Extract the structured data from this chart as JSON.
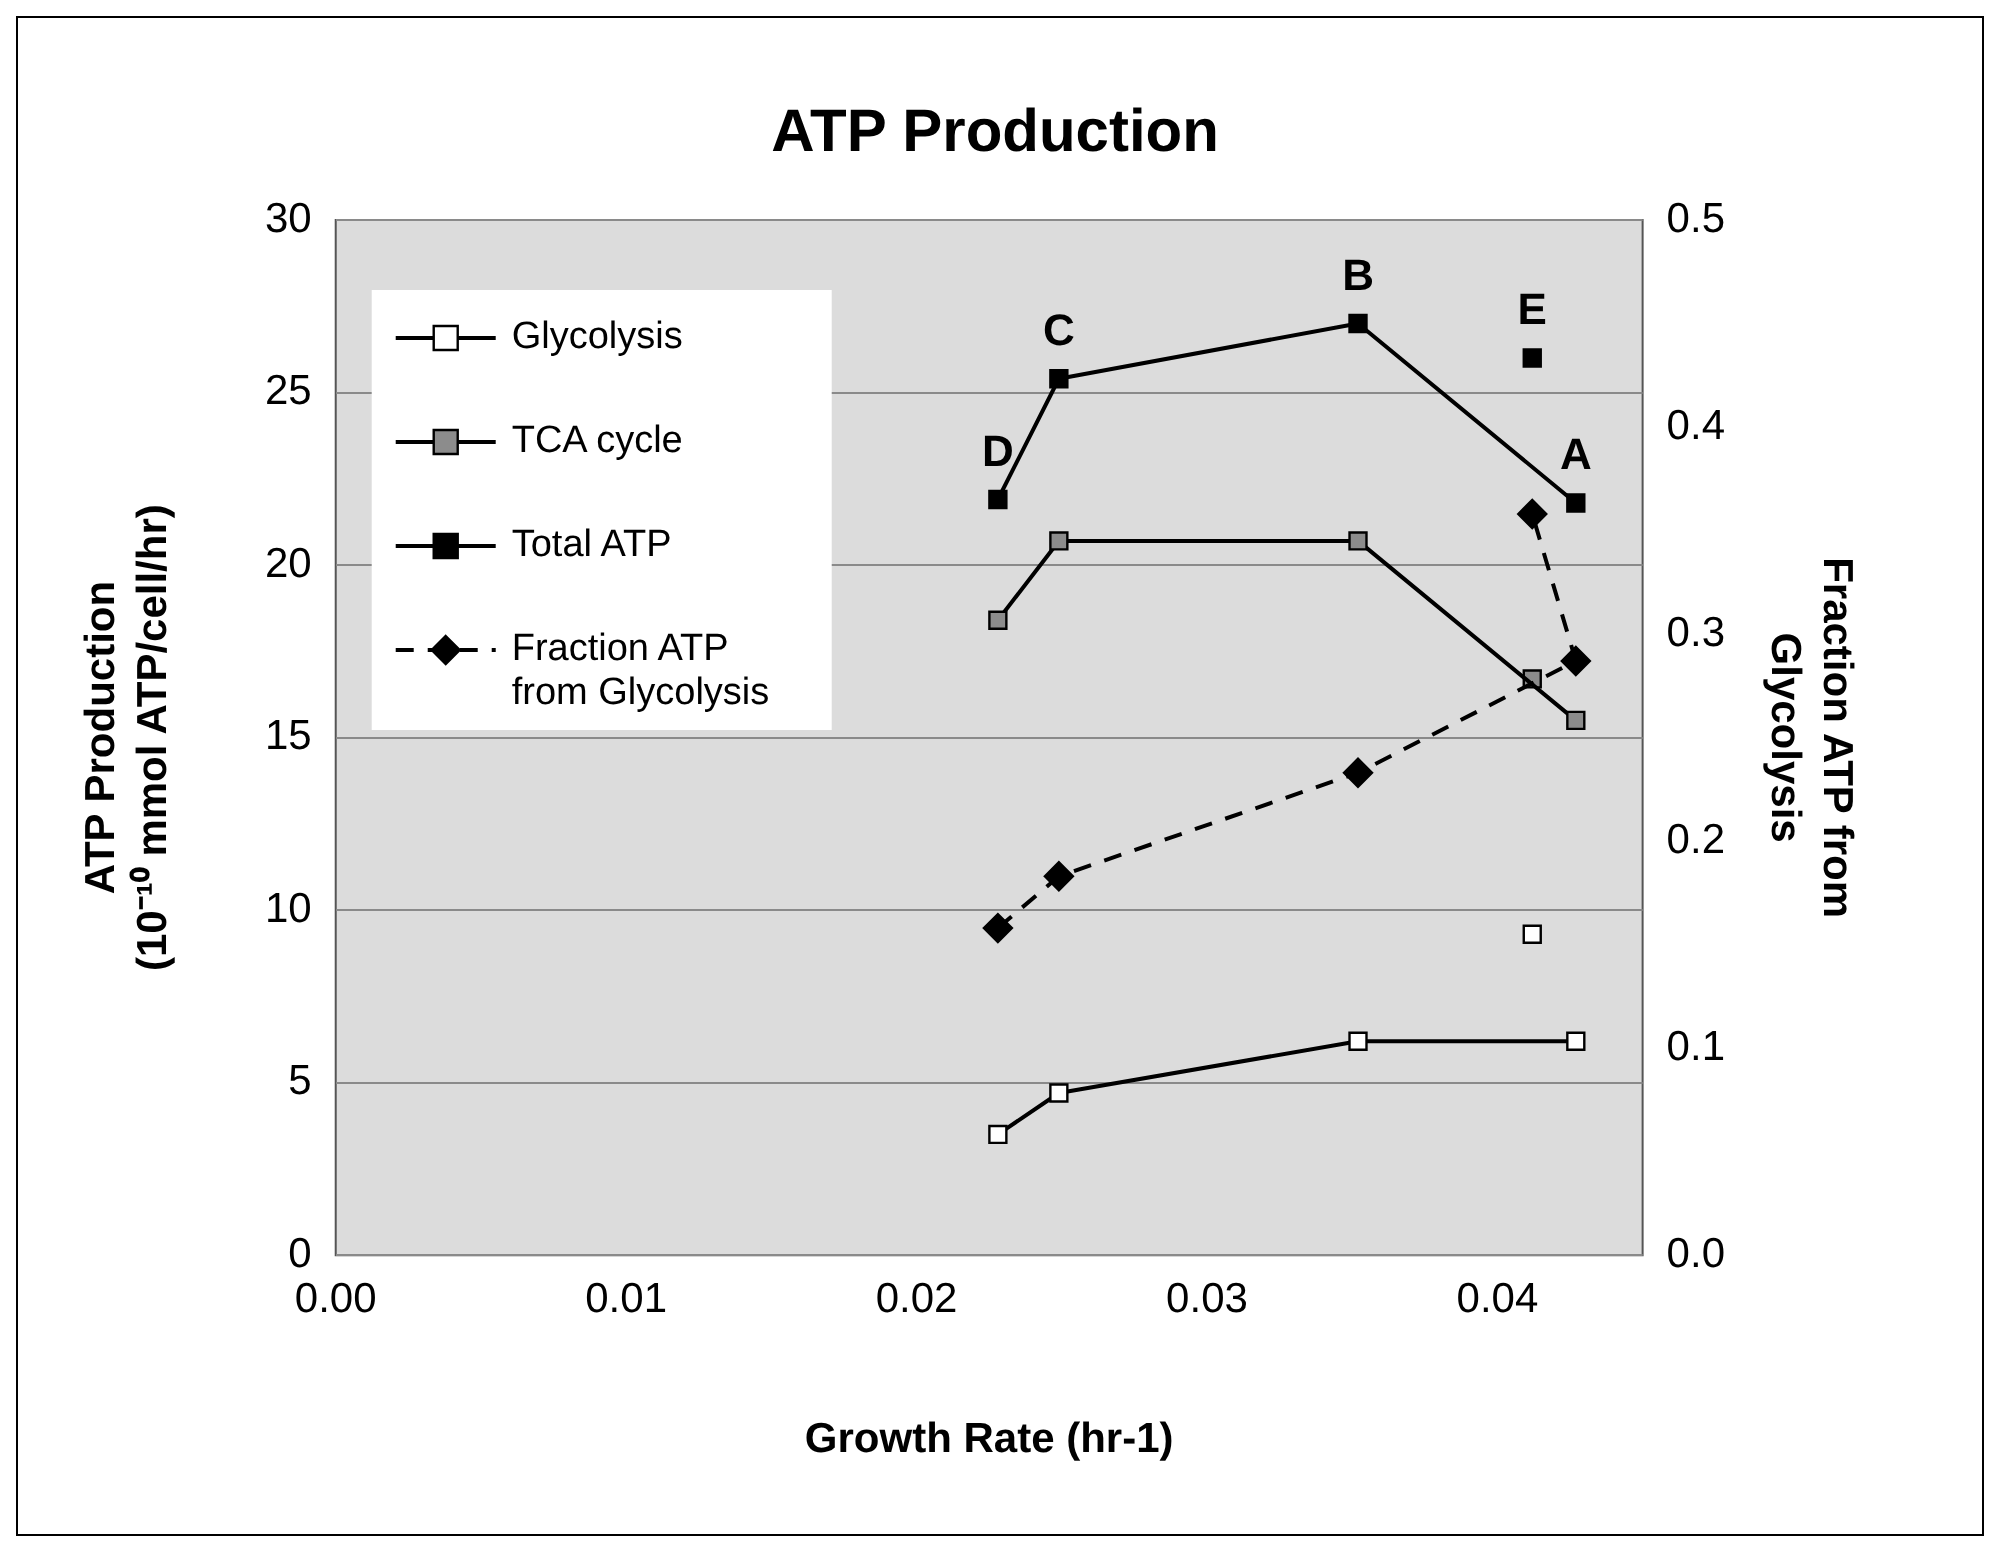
{
  "chart_data": {
    "type": "line",
    "title": "ATP Production",
    "xlabel": "Growth Rate (hr-1)",
    "ylabel": "ATP Production\n(10⁻¹⁰ mmol ATP/cell/hr)",
    "y2label": "Fraction ATP from\nGlycolysis",
    "xlim": [
      0,
      0.045
    ],
    "xticks": [
      {
        "value": 0,
        "label": "0.00"
      },
      {
        "value": 0.01,
        "label": "0.01"
      },
      {
        "value": 0.02,
        "label": "0.02"
      },
      {
        "value": 0.03,
        "label": "0.03"
      },
      {
        "value": 0.04,
        "label": "0.04"
      }
    ],
    "ylim": [
      0,
      30
    ],
    "yticks": [
      0,
      5,
      10,
      15,
      20,
      25,
      30
    ],
    "y2lim": [
      0,
      0.5
    ],
    "y2ticks": [
      {
        "value": 0,
        "label": "0.0"
      },
      {
        "value": 0.1,
        "label": "0.1"
      },
      {
        "value": 0.2,
        "label": "0.2"
      },
      {
        "value": 0.3,
        "label": "0.3"
      },
      {
        "value": 0.4,
        "label": "0.4"
      },
      {
        "value": 0.5,
        "label": "0.5"
      }
    ],
    "grid": "y",
    "legend": "top left",
    "series": [
      {
        "name": "Glycolysis",
        "color": "#ffffff",
        "marker": "square",
        "x": [
          0.0228,
          0.0249,
          0.0352,
          0.0427
        ],
        "values": [
          3.5,
          4.7,
          6.2,
          6.2
        ]
      },
      {
        "name": "TCA cycle",
        "color": "#8c8c8c",
        "marker": "square",
        "x": [
          0.0228,
          0.0249,
          0.0352,
          0.0427
        ],
        "values": [
          18.4,
          20.7,
          20.7,
          15.5
        ]
      },
      {
        "name": "Total ATP",
        "color": "#000000",
        "marker": "square",
        "x": [
          0.0228,
          0.0249,
          0.0352,
          0.0427
        ],
        "values": [
          21.9,
          25.4,
          27.0,
          21.8
        ]
      },
      {
        "name": "Fraction ATP from Glycolysis",
        "color": "#000000",
        "marker": "diamond",
        "line_style": "dashed",
        "axis": "y2",
        "x": [
          0.0228,
          0.0249,
          0.0352,
          0.0427,
          0.0412
        ],
        "values": [
          0.158,
          0.183,
          0.233,
          0.287,
          0.358
        ]
      },
      {
        "type": "scatter",
        "color": "#ffffff",
        "marker": "square",
        "x": [
          0.0412
        ],
        "values": [
          9.3
        ]
      },
      {
        "type": "scatter",
        "color": "#8c8c8c",
        "marker": "square",
        "x": [
          0.0412
        ],
        "values": [
          16.7
        ]
      },
      {
        "type": "scatter",
        "color": "#000000",
        "marker": "square",
        "x": [
          0.0412
        ],
        "values": [
          26.0
        ]
      }
    ],
    "annotations": [
      {
        "text": "D",
        "x": 0.0228,
        "y": 21.9
      },
      {
        "text": "C",
        "x": 0.0249,
        "y": 25.4
      },
      {
        "text": "B",
        "x": 0.0352,
        "y": 27.0
      },
      {
        "text": "E",
        "x": 0.0412,
        "y": 26.0
      },
      {
        "text": "A",
        "x": 0.0427,
        "y": 21.8
      }
    ]
  }
}
